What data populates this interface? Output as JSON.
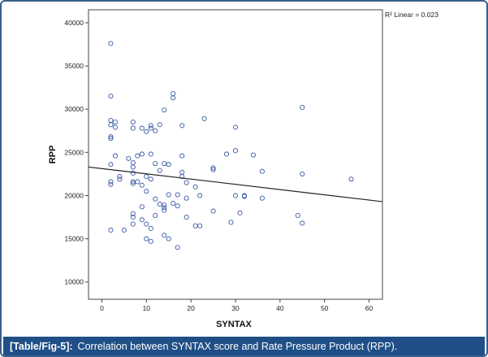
{
  "chart_data": {
    "type": "scatter",
    "title": "",
    "xlabel": "SYNTAX",
    "ylabel": "RPP",
    "xlim": [
      -3,
      63
    ],
    "ylim": [
      8000,
      41500
    ],
    "x_ticks": [
      0,
      10,
      20,
      30,
      40,
      50,
      60
    ],
    "y_ticks": [
      10000,
      15000,
      20000,
      25000,
      30000,
      35000,
      40000
    ],
    "legend": "R² Linear = 0.023",
    "fit_line": {
      "x": [
        -3,
        63
      ],
      "y": [
        23300,
        19300
      ]
    },
    "marker_color": "#3b5ba5",
    "points": [
      [
        2,
        37600
      ],
      [
        2,
        31500
      ],
      [
        2,
        28700
      ],
      [
        2,
        28200
      ],
      [
        3,
        28500
      ],
      [
        3,
        27900
      ],
      [
        2,
        26800
      ],
      [
        2,
        26600
      ],
      [
        3,
        24600
      ],
      [
        2,
        23600
      ],
      [
        2,
        21600
      ],
      [
        2,
        21300
      ],
      [
        2,
        16000
      ],
      [
        4,
        22200
      ],
      [
        4,
        21900
      ],
      [
        5,
        16000
      ],
      [
        6,
        24300
      ],
      [
        7,
        23800
      ],
      [
        7,
        23300
      ],
      [
        7,
        22600
      ],
      [
        7,
        21600
      ],
      [
        7,
        21400
      ],
      [
        8,
        21600
      ],
      [
        7,
        28500
      ],
      [
        7,
        27800
      ],
      [
        9,
        27800
      ],
      [
        10,
        27400
      ],
      [
        11,
        28100
      ],
      [
        11,
        27800
      ],
      [
        12,
        27500
      ],
      [
        13,
        28200
      ],
      [
        14,
        29900
      ],
      [
        16,
        31800
      ],
      [
        16,
        31300
      ],
      [
        18,
        28100
      ],
      [
        23,
        28900
      ],
      [
        8,
        24600
      ],
      [
        9,
        24800
      ],
      [
        11,
        24800
      ],
      [
        12,
        23700
      ],
      [
        10,
        22200
      ],
      [
        11,
        21900
      ],
      [
        13,
        22900
      ],
      [
        14,
        23700
      ],
      [
        15,
        23600
      ],
      [
        9,
        21200
      ],
      [
        10,
        20500
      ],
      [
        12,
        19600
      ],
      [
        13,
        19000
      ],
      [
        14,
        18900
      ],
      [
        14,
        18600
      ],
      [
        14,
        18300
      ],
      [
        16,
        19100
      ],
      [
        15,
        20100
      ],
      [
        17,
        20100
      ],
      [
        17,
        18800
      ],
      [
        18,
        22700
      ],
      [
        18,
        22200
      ],
      [
        18,
        24600
      ],
      [
        19,
        21500
      ],
      [
        19,
        19700
      ],
      [
        21,
        21000
      ],
      [
        22,
        20000
      ],
      [
        19,
        17500
      ],
      [
        7,
        17900
      ],
      [
        7,
        17500
      ],
      [
        7,
        16700
      ],
      [
        9,
        17200
      ],
      [
        10,
        16700
      ],
      [
        11,
        16200
      ],
      [
        12,
        17700
      ],
      [
        9,
        18700
      ],
      [
        10,
        15000
      ],
      [
        11,
        14700
      ],
      [
        14,
        15400
      ],
      [
        15,
        15000
      ],
      [
        17,
        14000
      ],
      [
        21,
        16500
      ],
      [
        22,
        16500
      ],
      [
        25,
        23200
      ],
      [
        25,
        23000
      ],
      [
        25,
        18200
      ],
      [
        28,
        24800
      ],
      [
        29,
        16900
      ],
      [
        30,
        25200
      ],
      [
        30,
        27900
      ],
      [
        30,
        20000
      ],
      [
        32,
        20000
      ],
      [
        32,
        19900
      ],
      [
        31,
        18000
      ],
      [
        34,
        24700
      ],
      [
        36,
        22800
      ],
      [
        36,
        19700
      ],
      [
        44,
        17700
      ],
      [
        45,
        16800
      ],
      [
        45,
        22500
      ],
      [
        45,
        30200
      ],
      [
        56,
        21900
      ]
    ]
  },
  "caption": {
    "label": "[Table/Fig-5]:",
    "text": "Correlation between SYNTAX score and Rate Pressure Product (RPP)."
  }
}
